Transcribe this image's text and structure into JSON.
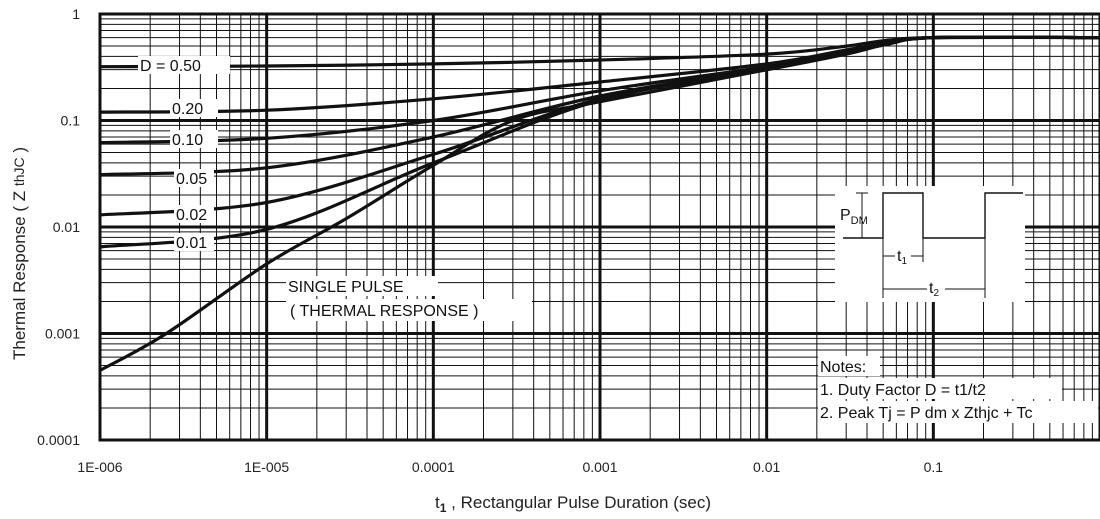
{
  "chart_data": {
    "type": "line",
    "title": "",
    "xlabel_main": "t",
    "xlabel_sub": "1",
    "xlabel_rest": " , Rectangular Pulse Duration (sec)",
    "ylabel_main": "Thermal Response ( Z ",
    "ylabel_sub": "thJC",
    "ylabel_end": " )",
    "x_scale": "log",
    "y_scale": "log",
    "xlim": [
      1e-06,
      1
    ],
    "ylim": [
      0.0001,
      1
    ],
    "grid": true,
    "x_ticks": [
      {
        "value": 1e-06,
        "label": "1E-006"
      },
      {
        "value": 1e-05,
        "label": "1E-005"
      },
      {
        "value": 0.0001,
        "label": "0.0001"
      },
      {
        "value": 0.001,
        "label": "0.001"
      },
      {
        "value": 0.01,
        "label": "0.01"
      },
      {
        "value": 0.1,
        "label": "0.1"
      }
    ],
    "y_ticks": [
      {
        "value": 1,
        "label": "1"
      },
      {
        "value": 0.1,
        "label": "0.1"
      },
      {
        "value": 0.01,
        "label": "0.01"
      },
      {
        "value": 0.001,
        "label": "0.001"
      },
      {
        "value": 0.0001,
        "label": "0.0001"
      }
    ],
    "series": [
      {
        "name": "D = 0.50",
        "x": [
          1e-06,
          1e-05,
          0.0001,
          0.001,
          0.01,
          0.03,
          0.05,
          0.1,
          1
        ],
        "y": [
          0.32,
          0.325,
          0.34,
          0.37,
          0.42,
          0.5,
          0.56,
          0.6,
          0.6
        ]
      },
      {
        "name": "0.20",
        "x": [
          1e-06,
          1e-05,
          0.0001,
          0.001,
          0.01,
          0.03,
          0.05,
          0.1,
          1
        ],
        "y": [
          0.12,
          0.125,
          0.16,
          0.23,
          0.34,
          0.46,
          0.53,
          0.6,
          0.6
        ]
      },
      {
        "name": "0.10",
        "x": [
          1e-06,
          1e-05,
          0.0001,
          0.001,
          0.01,
          0.03,
          0.05,
          0.1,
          1
        ],
        "y": [
          0.062,
          0.068,
          0.1,
          0.19,
          0.32,
          0.44,
          0.52,
          0.6,
          0.6
        ]
      },
      {
        "name": "0.05",
        "x": [
          1e-06,
          1e-05,
          0.0001,
          0.001,
          0.01,
          0.03,
          0.05,
          0.1,
          1
        ],
        "y": [
          0.031,
          0.036,
          0.07,
          0.17,
          0.31,
          0.43,
          0.52,
          0.6,
          0.6
        ]
      },
      {
        "name": "0.02",
        "x": [
          1e-06,
          1e-05,
          0.0001,
          0.001,
          0.01,
          0.03,
          0.05,
          0.1,
          1
        ],
        "y": [
          0.013,
          0.017,
          0.048,
          0.16,
          0.3,
          0.42,
          0.51,
          0.6,
          0.6
        ]
      },
      {
        "name": "0.01",
        "x": [
          1e-06,
          1e-05,
          0.0001,
          0.001,
          0.01,
          0.03,
          0.05,
          0.1,
          1
        ],
        "y": [
          0.0065,
          0.0095,
          0.04,
          0.155,
          0.3,
          0.42,
          0.51,
          0.6,
          0.6
        ]
      },
      {
        "name": "SINGLE PULSE",
        "x": [
          1e-06,
          2.5e-06,
          1e-05,
          3e-05,
          0.0001,
          0.0003,
          0.001,
          0.01,
          0.05,
          0.1,
          1
        ],
        "y": [
          0.00045,
          0.001,
          0.0045,
          0.012,
          0.038,
          0.1,
          0.15,
          0.3,
          0.51,
          0.6,
          0.6
        ]
      }
    ],
    "annotations": {
      "labels": [
        "D = 0.50",
        "0.20",
        "0.10",
        "0.05",
        "0.02",
        "0.01"
      ],
      "single_pulse_line1": "SINGLE PULSE",
      "single_pulse_line2": "( THERMAL RESPONSE )"
    },
    "inset": {
      "p_main": "P",
      "p_sub": "DM",
      "t1_main": "t",
      "t1_sub": "1",
      "t2_main": "t",
      "t2_sub": "2"
    },
    "notes": {
      "heading": "Notes:",
      "line1": "1. Duty Factor D = t1/t2",
      "line2": "2. Peak Tj = P dm x Zthjc + Tc"
    }
  }
}
